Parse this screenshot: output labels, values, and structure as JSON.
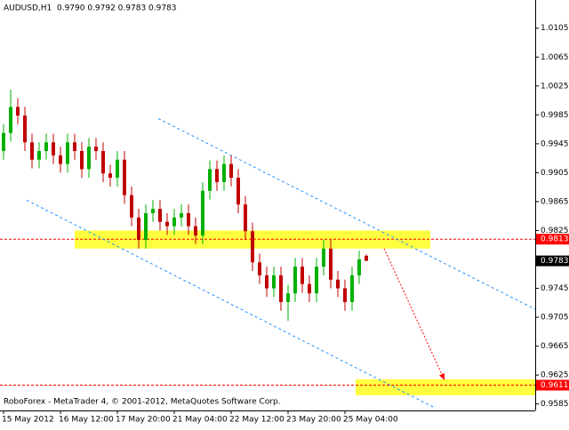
{
  "chart_data": {
    "type": "candlestick",
    "title": "AUDUSD,H1  0.9790 0.9792 0.9783 0.9783",
    "footer": "RoboForex - MetaTrader 4, © 2001-2012, MetaQuotes Software Corp.",
    "up_color": "#00b000",
    "down_color": "#c00000",
    "xlim": [
      -0.5,
      74.75
    ],
    "ylim": [
      0.9576,
      1.0144
    ],
    "yticks": [
      1.0105,
      1.0065,
      1.0025,
      0.9985,
      0.9945,
      0.9905,
      0.9865,
      0.9825,
      0.9785,
      0.9745,
      0.9705,
      0.9665,
      0.9625,
      0.9585
    ],
    "xticks": [
      {
        "value": 0,
        "label": "15 May 2012"
      },
      {
        "value": 8,
        "label": "16 May 12:00"
      },
      {
        "value": 16,
        "label": "17 May 20:00"
      },
      {
        "value": 24,
        "label": "21 May 04:00"
      },
      {
        "value": 32,
        "label": "22 May 12:00"
      },
      {
        "value": 40,
        "label": "23 May 20:00"
      },
      {
        "value": 48,
        "label": "25 May 04:00"
      }
    ],
    "open": [
      0.9935,
      0.996,
      0.9996,
      0.9984,
      0.9947,
      0.9923,
      0.9935,
      0.9947,
      0.9929,
      0.9917,
      0.9947,
      0.9935,
      0.991,
      0.9941,
      0.9935,
      0.9904,
      0.9898,
      0.9923,
      0.9874,
      0.9843,
      0.9812,
      0.9849,
      0.9855,
      0.9837,
      0.9831,
      0.9843,
      0.9849,
      0.9831,
      0.9818,
      0.988,
      0.991,
      0.9892,
      0.9917,
      0.9898,
      0.9861,
      0.9824,
      0.9781,
      0.9763,
      0.9745,
      0.9763,
      0.9726,
      0.9738,
      0.9775,
      0.9751,
      0.9738,
      0.9775,
      0.98,
      0.9757,
      0.9745,
      0.9726,
      0.9763,
      0.979
    ],
    "high": [
      0.9972,
      1.002,
      1.0008,
      0.9996,
      0.9959,
      0.9947,
      0.9959,
      0.9959,
      0.9941,
      0.9959,
      0.9959,
      0.9947,
      0.9953,
      0.9953,
      0.9947,
      0.9916,
      0.9935,
      0.9935,
      0.9886,
      0.9855,
      0.9861,
      0.9867,
      0.9867,
      0.9849,
      0.9855,
      0.9861,
      0.9861,
      0.9843,
      0.9892,
      0.9922,
      0.9922,
      0.9929,
      0.9929,
      0.991,
      0.9873,
      0.9836,
      0.9793,
      0.9775,
      0.9775,
      0.9775,
      0.975,
      0.9787,
      0.9787,
      0.9763,
      0.9787,
      0.9812,
      0.9812,
      0.9769,
      0.9757,
      0.9775,
      0.9797,
      0.9792
    ],
    "low": [
      0.9923,
      0.9948,
      0.9972,
      0.9935,
      0.9911,
      0.9911,
      0.9923,
      0.9917,
      0.9905,
      0.9905,
      0.9923,
      0.9898,
      0.9898,
      0.9923,
      0.9892,
      0.9886,
      0.9886,
      0.9862,
      0.9831,
      0.98,
      0.98,
      0.9837,
      0.9825,
      0.9819,
      0.9819,
      0.9831,
      0.9819,
      0.9806,
      0.9806,
      0.9868,
      0.988,
      0.988,
      0.9886,
      0.9849,
      0.9812,
      0.9769,
      0.9751,
      0.9733,
      0.9733,
      0.9714,
      0.97,
      0.9726,
      0.9739,
      0.9726,
      0.9726,
      0.9763,
      0.9745,
      0.9733,
      0.9714,
      0.9714,
      0.9751,
      0.9783
    ],
    "close": [
      0.996,
      0.9996,
      0.9984,
      0.9947,
      0.9923,
      0.9935,
      0.9947,
      0.9929,
      0.9917,
      0.9947,
      0.9935,
      0.991,
      0.9941,
      0.9935,
      0.9904,
      0.9898,
      0.9923,
      0.9874,
      0.9843,
      0.9812,
      0.9849,
      0.9855,
      0.9837,
      0.9831,
      0.9843,
      0.9849,
      0.9831,
      0.9818,
      0.988,
      0.991,
      0.9892,
      0.9917,
      0.9898,
      0.9861,
      0.9824,
      0.9781,
      0.9763,
      0.9745,
      0.9763,
      0.9726,
      0.9738,
      0.9775,
      0.9751,
      0.9738,
      0.9775,
      0.98,
      0.9757,
      0.9745,
      0.9726,
      0.9763,
      0.9785,
      0.9783
    ],
    "levels": [
      {
        "value": 0.9813,
        "color": "#ff0000"
      },
      {
        "value": 0.9611,
        "color": "#ff0000"
      }
    ],
    "price": {
      "value": 0.9783,
      "color": "#000000"
    },
    "zones": [
      {
        "x": [
          10,
          60
        ],
        "y": [
          0.98,
          0.9825
        ],
        "color": "#ffff00"
      },
      {
        "x": [
          49.5,
          74.75
        ],
        "y": [
          0.9597,
          0.9619
        ],
        "color": "#ffff00"
      }
    ],
    "channel": [
      {
        "x": [
          21.75,
          74.75
        ],
        "y": [
          0.998,
          0.9716
        ],
        "color": "#1e90ff"
      },
      {
        "x": [
          3.25,
          60.75
        ],
        "y": [
          0.9867,
          0.9579
        ],
        "color": "#1e90ff"
      }
    ],
    "arrow": {
      "x": [
        53.5,
        62
      ],
      "y": [
        0.98,
        0.9618
      ],
      "color": "#ff0000"
    }
  }
}
